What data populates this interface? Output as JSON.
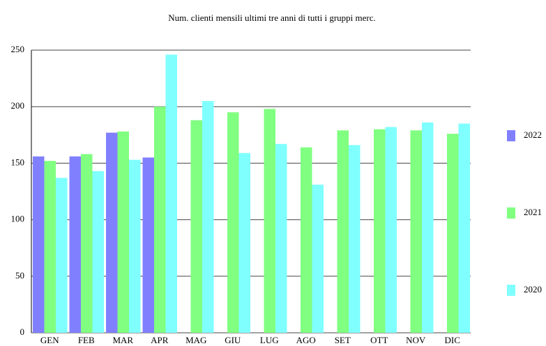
{
  "chart_data": {
    "type": "bar",
    "title": "Num. clienti mensili ultimi tre anni di tutti i gruppi merc.",
    "categories": [
      "GEN",
      "FEB",
      "MAR",
      "APR",
      "MAG",
      "GIU",
      "LUG",
      "AGO",
      "SET",
      "OTT",
      "NOV",
      "DIC"
    ],
    "series": [
      {
        "name": "2022",
        "color": "#8080ff",
        "values": [
          156,
          156,
          177,
          155,
          null,
          null,
          null,
          null,
          null,
          null,
          null,
          null
        ]
      },
      {
        "name": "2021",
        "color": "#80ff80",
        "values": [
          152,
          158,
          178,
          200,
          188,
          195,
          198,
          164,
          179,
          180,
          179,
          176
        ]
      },
      {
        "name": "2020",
        "color": "#80ffff",
        "values": [
          137,
          143,
          153,
          246,
          205,
          159,
          167,
          131,
          166,
          182,
          186,
          185
        ]
      }
    ],
    "ylim": [
      0,
      250
    ],
    "yticks": [
      0,
      50,
      100,
      150,
      200,
      250
    ],
    "grid": true
  }
}
